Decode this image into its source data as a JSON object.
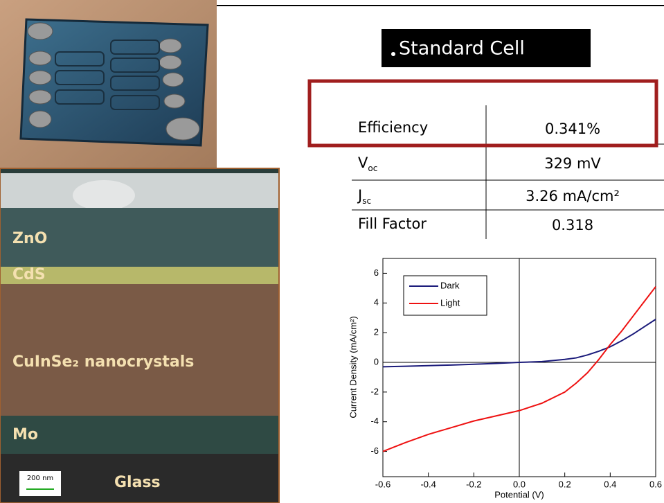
{
  "header": {
    "title": "Standard Cell"
  },
  "table": {
    "rows": [
      {
        "label": "Efficiency",
        "value": "0.341%"
      },
      {
        "label": "V",
        "label_sub": "oc",
        "value": "329 mV"
      },
      {
        "label": "J",
        "label_sub": "sc",
        "value": "3.26 mA/cm²"
      },
      {
        "label": "Fill Factor",
        "value": "0.318"
      }
    ]
  },
  "sem": {
    "layers": [
      "ZnO",
      "CdS",
      "CuInSe₂ nanocrystals",
      "Mo",
      "Glass"
    ],
    "scale_bar": "200 nm"
  },
  "chart_data": {
    "type": "line",
    "xlabel": "Potential (V)",
    "ylabel": "Current Density (mA/cm²)",
    "x": [
      -0.6,
      -0.5,
      -0.4,
      -0.3,
      -0.2,
      -0.1,
      0,
      0.1,
      0.2,
      0.25,
      0.3,
      0.35,
      0.4,
      0.45,
      0.5,
      0.55,
      0.6
    ],
    "series": [
      {
        "name": "Dark",
        "color": "#1a1a7a",
        "values": [
          -0.3,
          -0.26,
          -0.22,
          -0.18,
          -0.13,
          -0.07,
          0,
          0.05,
          0.2,
          0.3,
          0.5,
          0.75,
          1.05,
          1.45,
          1.9,
          2.4,
          2.9
        ]
      },
      {
        "name": "Light",
        "color": "#ee1111",
        "values": [
          -6.0,
          -5.4,
          -4.85,
          -4.4,
          -3.95,
          -3.6,
          -3.25,
          -2.75,
          -2.0,
          -1.4,
          -0.7,
          0.2,
          1.2,
          2.1,
          3.1,
          4.1,
          5.1
        ]
      }
    ],
    "xlim": [
      -0.6,
      0.6
    ],
    "xticks": [
      -0.6,
      -0.4,
      -0.2,
      {
        "value": 0,
        "label": "0.0"
      },
      0.2,
      0.4,
      0.6
    ],
    "ylim": [
      -7.7,
      7
    ],
    "yticks": [
      -6,
      -4,
      -2,
      0,
      2,
      4,
      6
    ],
    "legend": "upper left"
  }
}
